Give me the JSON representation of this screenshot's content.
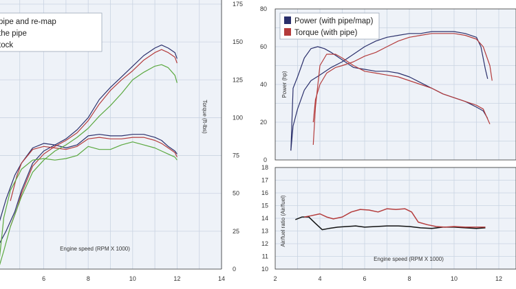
{
  "chart_data": [
    {
      "type": "line",
      "panel": "left",
      "x_axis": {
        "label": "Engine speed (RPM X 1000)",
        "range": [
          4,
          14
        ],
        "ticks": [
          "6",
          "8",
          "10",
          "12",
          "14"
        ]
      },
      "y_axis": {
        "label": "Torque (ft-lbs)",
        "side": "right",
        "range": [
          0,
          175
        ],
        "ticks": [
          "0",
          "25",
          "50",
          "75",
          "100",
          "125",
          "150",
          "175"
        ]
      },
      "grid": true,
      "legend": {
        "placement": "top-left",
        "entries": [
          "pipe and re-map",
          "the pipe",
          "tock"
        ]
      },
      "colors": {
        "background": "#eef2f8",
        "grid": "#c9d3e2",
        "series1": "#2a2f6b",
        "series2": "#b43b3b",
        "series3": "#5aa83e"
      },
      "series": [
        {
          "name": "pipe and re-map",
          "kind": "power",
          "x": [
            3.9,
            4.3,
            4.7,
            5.0,
            5.5,
            6.0,
            6.5,
            7.0,
            7.5,
            8.0,
            8.5,
            9.0,
            9.5,
            10.0,
            10.5,
            11.0,
            11.3,
            11.6,
            11.9,
            12.0
          ],
          "y": [
            14,
            25,
            38,
            52,
            70,
            78,
            82,
            86,
            92,
            100,
            112,
            120,
            127,
            134,
            141,
            146,
            148,
            146,
            143,
            139
          ]
        },
        {
          "name": "pipe and re-map",
          "kind": "torque",
          "x": [
            3.9,
            4.3,
            4.7,
            5.0,
            5.5,
            6.0,
            6.5,
            7.0,
            7.5,
            8.0,
            8.5,
            9.0,
            9.5,
            10.0,
            10.5,
            11.0,
            11.3,
            11.6,
            11.9,
            12.0
          ],
          "y": [
            26,
            46,
            62,
            70,
            80,
            83,
            82,
            80,
            82,
            88,
            89,
            88,
            88,
            89,
            89,
            87,
            85,
            81,
            78,
            76
          ]
        },
        {
          "name": "the pipe",
          "kind": "power",
          "x": [
            4.5,
            4.8,
            5.0,
            5.5,
            6.0,
            6.5,
            7.0,
            7.5,
            8.0,
            8.5,
            9.0,
            9.5,
            10.0,
            10.5,
            11.0,
            11.3,
            11.6,
            11.9,
            12.0
          ],
          "y": [
            28,
            40,
            50,
            68,
            76,
            81,
            85,
            90,
            98,
            109,
            118,
            125,
            131,
            138,
            143,
            145,
            143,
            140,
            136
          ]
        },
        {
          "name": "the pipe",
          "kind": "torque",
          "x": [
            4.5,
            4.8,
            5.0,
            5.5,
            6.0,
            6.5,
            7.0,
            7.5,
            8.0,
            8.5,
            9.0,
            9.5,
            10.0,
            10.5,
            11.0,
            11.3,
            11.6,
            11.9,
            12.0
          ],
          "y": [
            45,
            62,
            70,
            79,
            81,
            80,
            79,
            81,
            86,
            87,
            86,
            86,
            87,
            87,
            85,
            83,
            80,
            77,
            74
          ]
        },
        {
          "name": "tock",
          "kind": "power",
          "x": [
            4.0,
            4.2,
            4.5,
            5.0,
            5.5,
            6.0,
            6.5,
            7.0,
            7.5,
            8.0,
            8.5,
            9.0,
            9.5,
            10.0,
            10.5,
            11.0,
            11.3,
            11.6,
            11.9,
            12.0
          ],
          "y": [
            2,
            12,
            28,
            48,
            64,
            72,
            78,
            82,
            87,
            93,
            101,
            108,
            116,
            125,
            130,
            134,
            135,
            133,
            128,
            123
          ]
        },
        {
          "name": "tock",
          "kind": "torque",
          "x": [
            4.0,
            4.2,
            4.5,
            5.0,
            5.5,
            6.0,
            6.5,
            7.0,
            7.5,
            8.0,
            8.5,
            9.0,
            9.5,
            10.0,
            10.5,
            11.0,
            11.3,
            11.6,
            11.9,
            12.0
          ],
          "y": [
            6,
            34,
            52,
            66,
            72,
            73,
            72,
            73,
            75,
            81,
            79,
            79,
            82,
            84,
            82,
            80,
            78,
            76,
            74,
            72
          ]
        }
      ]
    },
    {
      "type": "line",
      "panel": "top-right",
      "x_axis": {
        "range": [
          2,
          12
        ],
        "ticks": []
      },
      "y_axis": {
        "label": "Power (hp)",
        "side": "left",
        "range": [
          0,
          80
        ],
        "ticks": [
          "0",
          "20",
          "40",
          "60",
          "80"
        ]
      },
      "grid": true,
      "legend": {
        "placement": "top-left",
        "entries": [
          "Power (with pipe/map)",
          "Torque (with pipe)"
        ]
      },
      "colors": {
        "background": "#eef2f8",
        "grid": "#c9d3e2",
        "series1": "#2a2f6b",
        "series2": "#b43b3b"
      },
      "series": [
        {
          "name": "Power (with pipe/map)",
          "kind": "power",
          "x": [
            2.7,
            2.8,
            3.0,
            3.3,
            3.6,
            4.0,
            4.5,
            5.0,
            5.5,
            6.0,
            6.5,
            7.0,
            7.5,
            8.0,
            8.5,
            9.0,
            9.5,
            10.0,
            10.5,
            11.0,
            11.2,
            11.4,
            11.5
          ],
          "y": [
            5,
            18,
            27,
            37,
            42,
            45,
            49,
            52,
            56,
            60,
            63,
            65,
            66,
            67,
            67,
            68,
            68,
            68,
            67,
            65,
            60,
            48,
            43
          ]
        },
        {
          "name": "Power (with pipe/map)",
          "kind": "torque",
          "x": [
            2.7,
            2.8,
            3.0,
            3.3,
            3.6,
            3.9,
            4.2,
            4.5,
            5.0,
            5.5,
            6.0,
            6.5,
            7.0,
            7.5,
            8.0,
            8.5,
            9.0,
            9.5,
            10.0,
            10.5,
            11.0,
            11.3,
            11.5
          ],
          "y": [
            5,
            38,
            44,
            54,
            59,
            60,
            59,
            57,
            53,
            49,
            48,
            47,
            47,
            46,
            44,
            41,
            38,
            35,
            33,
            31,
            28,
            26,
            22
          ]
        },
        {
          "name": "Torque (with pipe)",
          "kind": "torque",
          "x": [
            3.7,
            3.8,
            4.0,
            4.3,
            4.7,
            5.0,
            5.5,
            6.0,
            6.5,
            7.0,
            7.5,
            8.0,
            8.5,
            9.0,
            9.5,
            10.0,
            10.5,
            11.0,
            11.3,
            11.6
          ],
          "y": [
            8,
            28,
            50,
            56,
            56,
            54,
            50,
            47,
            46,
            45,
            44,
            42,
            40,
            38,
            35,
            33,
            31,
            29,
            27,
            19
          ]
        },
        {
          "name": "Torque (with pipe)",
          "kind": "power",
          "x": [
            3.7,
            3.8,
            4.0,
            4.3,
            4.7,
            5.0,
            5.5,
            6.0,
            6.5,
            7.0,
            7.5,
            8.0,
            8.5,
            9.0,
            9.5,
            10.0,
            10.5,
            11.0,
            11.3,
            11.6,
            11.7
          ],
          "y": [
            20,
            32,
            40,
            46,
            49,
            50,
            52,
            55,
            57,
            60,
            63,
            65,
            66,
            67,
            67,
            67,
            66,
            64,
            60,
            50,
            42
          ]
        }
      ]
    },
    {
      "type": "line",
      "panel": "bottom-right",
      "x_axis": {
        "label": "Engine speed (RPM X 1000)",
        "range": [
          2,
          13
        ],
        "ticks": [
          "2",
          "4",
          "6",
          "8",
          "10",
          "12"
        ]
      },
      "y_axis": {
        "label": "Air/fuel ratio (Air/fuel)",
        "side": "left",
        "range": [
          10,
          18
        ],
        "ticks": [
          "10",
          "11",
          "12",
          "13",
          "14",
          "15",
          "16",
          "17",
          "18"
        ]
      },
      "grid": true,
      "colors": {
        "background": "#eef2f8",
        "grid": "#c9d3e2",
        "series1": "#111111",
        "series2": "#b43b3b"
      },
      "series": [
        {
          "kind": "stock-afr",
          "x": [
            2.9,
            3.2,
            3.5,
            3.8,
            4.1,
            4.4,
            4.8,
            5.2,
            5.6,
            6.0,
            6.5,
            7.0,
            7.5,
            8.0,
            8.5,
            9.0,
            9.5,
            10.0,
            10.5,
            11.0,
            11.4
          ],
          "y": [
            13.9,
            14.1,
            14.1,
            13.6,
            13.1,
            13.2,
            13.3,
            13.35,
            13.4,
            13.3,
            13.35,
            13.4,
            13.4,
            13.35,
            13.25,
            13.2,
            13.3,
            13.3,
            13.25,
            13.2,
            13.25
          ]
        },
        {
          "kind": "pipe-afr",
          "x": [
            3.3,
            3.6,
            4.0,
            4.3,
            4.6,
            5.0,
            5.4,
            5.8,
            6.2,
            6.6,
            7.0,
            7.4,
            7.8,
            8.1,
            8.4,
            8.8,
            9.2,
            9.6,
            10.0,
            10.5,
            11.0,
            11.4
          ],
          "y": [
            14.1,
            14.2,
            14.35,
            14.1,
            13.95,
            14.1,
            14.5,
            14.7,
            14.65,
            14.5,
            14.75,
            14.7,
            14.75,
            14.5,
            13.7,
            13.5,
            13.35,
            13.3,
            13.35,
            13.3,
            13.3,
            13.3
          ]
        }
      ]
    }
  ]
}
